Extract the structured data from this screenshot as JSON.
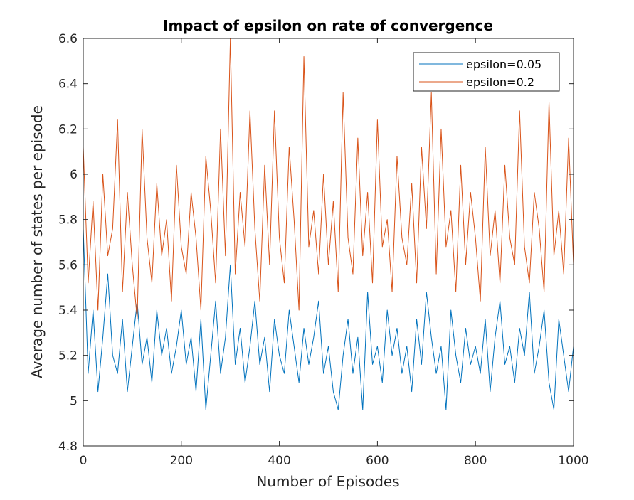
{
  "chart_data": {
    "type": "line",
    "title": "Impact of epsilon on rate of convergence",
    "xlabel": "Number of Episodes",
    "ylabel": "Average number of states per episode",
    "xlim": [
      0,
      1000
    ],
    "ylim": [
      4.8,
      6.6
    ],
    "xticks": [
      "0",
      "200",
      "400",
      "600",
      "800",
      "1000"
    ],
    "yticks": [
      "4.8",
      "5",
      "5.2",
      "5.4",
      "5.6",
      "5.8",
      "6",
      "6.2",
      "6.4",
      "6.6"
    ],
    "grid": false,
    "legend_position": "top-right",
    "series": [
      {
        "name": "epsilon=0.05",
        "color": "#0072BD",
        "sampling": "every 10 episodes",
        "x": [
          0,
          10,
          20,
          30,
          40,
          50,
          60,
          70,
          80,
          90,
          100,
          110,
          120,
          130,
          140,
          150,
          160,
          170,
          180,
          190,
          200,
          210,
          220,
          230,
          240,
          250,
          260,
          270,
          280,
          290,
          300,
          310,
          320,
          330,
          340,
          350,
          360,
          370,
          380,
          390,
          400,
          410,
          420,
          430,
          440,
          450,
          460,
          470,
          480,
          490,
          500,
          510,
          520,
          530,
          540,
          550,
          560,
          570,
          580,
          590,
          600,
          610,
          620,
          630,
          640,
          650,
          660,
          670,
          680,
          690,
          700,
          710,
          720,
          730,
          740,
          750,
          760,
          770,
          780,
          790,
          800,
          810,
          820,
          830,
          840,
          850,
          860,
          870,
          880,
          890,
          900,
          910,
          920,
          930,
          940,
          950,
          960,
          970,
          980,
          990,
          1000
        ],
        "values": [
          5.76,
          5.12,
          5.4,
          5.04,
          5.28,
          5.56,
          5.2,
          5.12,
          5.36,
          5.04,
          5.24,
          5.44,
          5.16,
          5.28,
          5.08,
          5.4,
          5.2,
          5.32,
          5.12,
          5.24,
          5.4,
          5.16,
          5.28,
          5.04,
          5.36,
          4.96,
          5.2,
          5.44,
          5.12,
          5.28,
          5.6,
          5.16,
          5.32,
          5.08,
          5.24,
          5.44,
          5.16,
          5.28,
          5.04,
          5.36,
          5.2,
          5.12,
          5.4,
          5.24,
          5.08,
          5.32,
          5.16,
          5.28,
          5.44,
          5.12,
          5.24,
          5.04,
          4.96,
          5.2,
          5.36,
          5.12,
          5.28,
          4.96,
          5.48,
          5.16,
          5.24,
          5.08,
          5.4,
          5.2,
          5.32,
          5.12,
          5.24,
          5.04,
          5.36,
          5.16,
          5.48,
          5.28,
          5.12,
          5.24,
          4.96,
          5.4,
          5.2,
          5.08,
          5.32,
          5.16,
          5.24,
          5.12,
          5.36,
          5.04,
          5.28,
          5.44,
          5.16,
          5.24,
          5.08,
          5.32,
          5.2,
          5.48,
          5.12,
          5.24,
          5.4,
          5.08,
          4.96,
          5.36,
          5.2,
          5.04,
          5.24
        ]
      },
      {
        "name": "epsilon=0.2",
        "color": "#D95319",
        "sampling": "every 10 episodes",
        "x": [
          0,
          10,
          20,
          30,
          40,
          50,
          60,
          70,
          80,
          90,
          100,
          110,
          120,
          130,
          140,
          150,
          160,
          170,
          180,
          190,
          200,
          210,
          220,
          230,
          240,
          250,
          260,
          270,
          280,
          290,
          300,
          310,
          320,
          330,
          340,
          350,
          360,
          370,
          380,
          390,
          400,
          410,
          420,
          430,
          440,
          450,
          460,
          470,
          480,
          490,
          500,
          510,
          520,
          530,
          540,
          550,
          560,
          570,
          580,
          590,
          600,
          610,
          620,
          630,
          640,
          650,
          660,
          670,
          680,
          690,
          700,
          710,
          720,
          730,
          740,
          750,
          760,
          770,
          780,
          790,
          800,
          810,
          820,
          830,
          840,
          850,
          860,
          870,
          880,
          890,
          900,
          910,
          920,
          930,
          940,
          950,
          960,
          970,
          980,
          990,
          1000
        ],
        "values": [
          6.12,
          5.52,
          5.88,
          5.4,
          6.0,
          5.64,
          5.76,
          6.24,
          5.48,
          5.92,
          5.6,
          5.36,
          6.2,
          5.72,
          5.52,
          5.96,
          5.64,
          5.8,
          5.44,
          6.04,
          5.68,
          5.56,
          5.92,
          5.72,
          5.4,
          6.08,
          5.84,
          5.52,
          6.2,
          5.64,
          6.6,
          5.56,
          5.92,
          5.68,
          6.28,
          5.76,
          5.44,
          6.04,
          5.6,
          6.28,
          5.72,
          5.52,
          6.12,
          5.8,
          5.4,
          6.52,
          5.68,
          5.84,
          5.56,
          6.0,
          5.6,
          5.88,
          5.48,
          6.36,
          5.72,
          5.56,
          6.16,
          5.64,
          5.92,
          5.52,
          6.24,
          5.68,
          5.8,
          5.48,
          6.08,
          5.72,
          5.6,
          5.96,
          5.52,
          6.12,
          5.76,
          6.36,
          5.56,
          6.2,
          5.68,
          5.84,
          5.48,
          6.04,
          5.6,
          5.92,
          5.72,
          5.44,
          6.12,
          5.64,
          5.84,
          5.52,
          6.04,
          5.72,
          5.6,
          6.28,
          5.68,
          5.52,
          5.92,
          5.76,
          5.48,
          6.32,
          5.64,
          5.84,
          5.56,
          6.16,
          5.6
        ]
      }
    ]
  }
}
